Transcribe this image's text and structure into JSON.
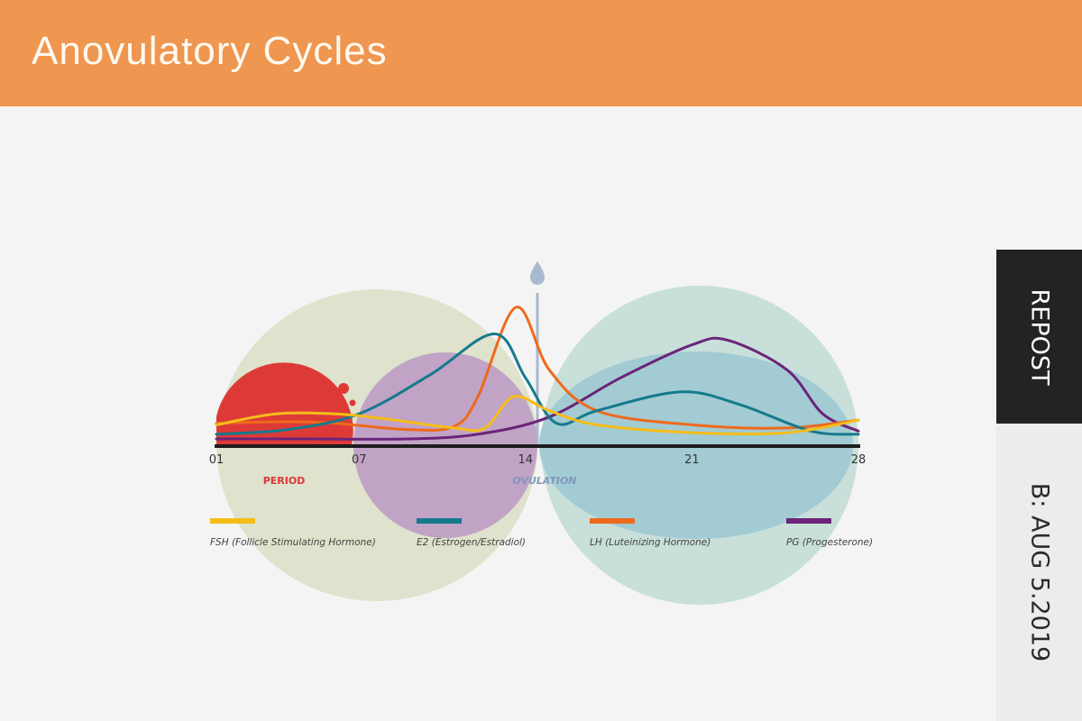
{
  "header": {
    "title": "Anovulatory Cycles"
  },
  "side": {
    "repost": "REPOST",
    "date": "B: AUG 5.2019"
  },
  "chart_data": {
    "type": "line",
    "title": "",
    "xlabel": "",
    "ylabel": "",
    "xlim": [
      1,
      28
    ],
    "ylim": [
      0,
      100
    ],
    "grid": false,
    "x_ticks": [
      {
        "value": 1,
        "label": "01"
      },
      {
        "value": 7,
        "label": "07"
      },
      {
        "value": 14,
        "label": "14"
      },
      {
        "value": 21,
        "label": "21"
      },
      {
        "value": 28,
        "label": "28"
      }
    ],
    "annotations": [
      {
        "label": "PERIOD",
        "day": 4,
        "color": "#d9373a"
      },
      {
        "label": "OVULATION",
        "day": 14.5,
        "color": "#7f98bf"
      }
    ],
    "legend_placement": "bottom",
    "series": [
      {
        "name": "FSH (Follicle Stimulating Hormone)",
        "color": "#f5bd19",
        "x": [
          1,
          3.5,
          6,
          8,
          11,
          12.3,
          13.5,
          15,
          17,
          21,
          25,
          28
        ],
        "y": [
          13,
          20,
          20,
          17,
          11,
          11,
          31,
          22,
          13,
          8,
          8,
          16
        ]
      },
      {
        "name": "E2 (Estrogen/Estradiol)",
        "color": "#157a8c",
        "x": [
          1,
          4,
          7,
          10,
          12.7,
          14,
          15.3,
          17,
          20.5,
          23,
          26,
          28
        ],
        "y": [
          7,
          10,
          20,
          45,
          71,
          43,
          14,
          22,
          34,
          26,
          9,
          7
        ]
      },
      {
        "name": "LH (Luteinizing Hormone)",
        "color": "#ee6a1c",
        "x": [
          1,
          4,
          6,
          9,
          11,
          12,
          13.6,
          15,
          17,
          21,
          25,
          28
        ],
        "y": [
          14,
          15,
          14,
          10,
          12,
          31,
          88,
          48,
          22,
          13,
          11,
          16
        ]
      },
      {
        "name": "PG (Progesterone)",
        "color": "#6b2479",
        "x": [
          1,
          5,
          9,
          12,
          15,
          18,
          21,
          22.5,
          25,
          26.5,
          28
        ],
        "y": [
          4,
          4,
          4,
          7,
          18,
          43,
          64,
          67,
          48,
          20,
          9
        ]
      }
    ]
  }
}
